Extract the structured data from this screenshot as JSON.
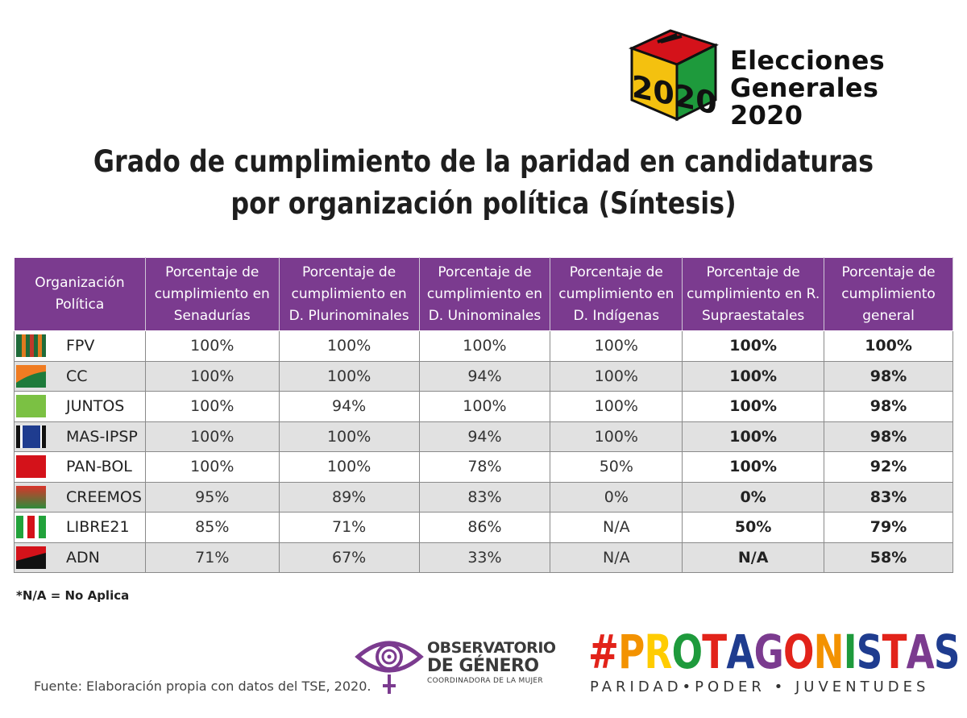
{
  "brand": {
    "logo_year": "2020",
    "line1": "Elecciones",
    "line2": "Generales 2020"
  },
  "title": {
    "line1": "Grado de cumplimiento de la paridad en candidaturas",
    "line2": "por organización política (Síntesis)"
  },
  "table": {
    "headers": [
      "Organización Política",
      "Porcentaje de cumplimiento en Senadurías",
      "Porcentaje de cumplimiento en D. Plurinominales",
      "Porcentaje de cumplimiento en D. Uninominales",
      "Porcentaje de cumplimiento en D. Indígenas",
      "Porcentaje de cumplimiento en R. Supraestatales",
      "Porcentaje de cumplimiento general"
    ],
    "rows": [
      {
        "party": "FPV",
        "flag": "fpv-flag",
        "values": [
          "100%",
          "100%",
          "100%",
          "100%",
          "100%",
          "100%"
        ]
      },
      {
        "party": "CC",
        "flag": "cc-flag",
        "values": [
          "100%",
          "100%",
          "94%",
          "100%",
          "100%",
          "98%"
        ]
      },
      {
        "party": "JUNTOS",
        "flag": "juntos-flag",
        "values": [
          "100%",
          "94%",
          "100%",
          "100%",
          "100%",
          "98%"
        ]
      },
      {
        "party": "MAS-IPSP",
        "flag": "mas-ipsp-flag",
        "values": [
          "100%",
          "100%",
          "94%",
          "100%",
          "100%",
          "98%"
        ]
      },
      {
        "party": "PAN-BOL",
        "flag": "pan-bol-flag",
        "values": [
          "100%",
          "100%",
          "78%",
          "50%",
          "100%",
          "92%"
        ]
      },
      {
        "party": "CREEMOS",
        "flag": "creemos-flag",
        "values": [
          "95%",
          "89%",
          "83%",
          "0%",
          "0%",
          "83%"
        ]
      },
      {
        "party": "LIBRE21",
        "flag": "libre21-flag",
        "values": [
          "85%",
          "71%",
          "86%",
          "N/A",
          "50%",
          "79%"
        ]
      },
      {
        "party": "ADN",
        "flag": "adn-flag",
        "values": [
          "71%",
          "67%",
          "33%",
          "N/A",
          "N/A",
          "58%"
        ]
      }
    ]
  },
  "note": "*N/A = No Aplica",
  "source": "Fuente: Elaboración propia con datos del TSE, 2020.",
  "observatorio": {
    "line1": "OBSERVATORIO",
    "line2": "DE GÉNERO",
    "line3": "COORDINADORA DE LA MUJER"
  },
  "protagonistas": {
    "hashtag": "#PROTAGONISTAS",
    "tagline": "PARIDAD•PODER • JUVENTUDES"
  },
  "colors": {
    "header_purple": "#7b3b8f",
    "row_alt_gray": "#e1e1e1"
  }
}
